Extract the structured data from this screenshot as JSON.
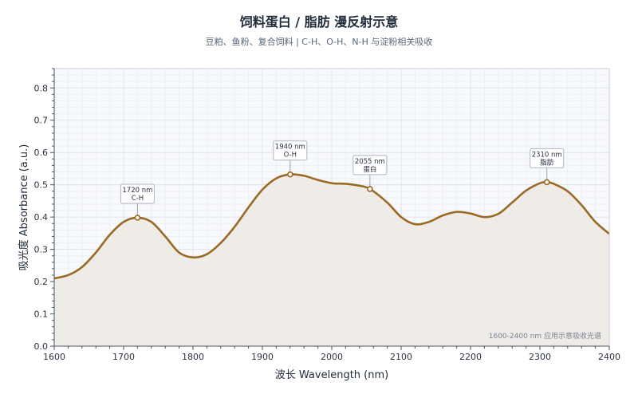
{
  "chart_data": {
    "type": "area",
    "title": "饲料蛋白 / 脂肪  漫反射示意",
    "subtitle": "豆粕、鱼粉、复合饲料 | C-H、O-H、N-H 与淀粉相关吸收",
    "xlabel": "波长 Wavelength (nm)",
    "ylabel": "吸光度 Absorbance (a.u.)",
    "xlim": [
      1600,
      2400
    ],
    "ylim": [
      0,
      0.86
    ],
    "x_ticks": [
      1600,
      1700,
      1800,
      1900,
      2000,
      2100,
      2200,
      2300,
      2400
    ],
    "y_ticks": [
      0.0,
      0.1,
      0.2,
      0.3,
      0.4,
      0.5,
      0.6,
      0.7,
      0.8
    ],
    "grid": true,
    "note": "1600-2400 nm 应用示意吸收光谱",
    "colors": {
      "line": "#9a6a25",
      "fill": "#efebe6",
      "plot_bg": "#f7f9fc",
      "grid": "#dfe3ea",
      "point_fill": "#ffffff"
    },
    "series": [
      {
        "x": [
          1600,
          1620,
          1640,
          1660,
          1680,
          1700,
          1720,
          1740,
          1760,
          1780,
          1800,
          1820,
          1840,
          1860,
          1880,
          1900,
          1920,
          1940,
          1960,
          1980,
          2000,
          2020,
          2040,
          2055,
          2080,
          2100,
          2120,
          2140,
          2160,
          2180,
          2200,
          2220,
          2240,
          2260,
          2280,
          2300,
          2310,
          2320,
          2340,
          2360,
          2380,
          2400
        ],
        "y": [
          0.21,
          0.22,
          0.245,
          0.29,
          0.345,
          0.385,
          0.398,
          0.385,
          0.34,
          0.29,
          0.275,
          0.285,
          0.32,
          0.37,
          0.43,
          0.485,
          0.52,
          0.532,
          0.528,
          0.515,
          0.505,
          0.503,
          0.497,
          0.487,
          0.445,
          0.4,
          0.378,
          0.385,
          0.405,
          0.416,
          0.411,
          0.4,
          0.41,
          0.445,
          0.482,
          0.505,
          0.508,
          0.503,
          0.48,
          0.437,
          0.385,
          0.348
        ]
      }
    ],
    "annotations": [
      {
        "x": 1720,
        "y": 0.398,
        "line1": "1720 nm",
        "line2": "C-H"
      },
      {
        "x": 1940,
        "y": 0.532,
        "line1": "1940 nm",
        "line2": "O-H"
      },
      {
        "x": 2055,
        "y": 0.487,
        "line1": "2055 nm",
        "line2": "蛋白"
      },
      {
        "x": 2310,
        "y": 0.508,
        "line1": "2310 nm",
        "line2": "脂肪"
      }
    ]
  }
}
